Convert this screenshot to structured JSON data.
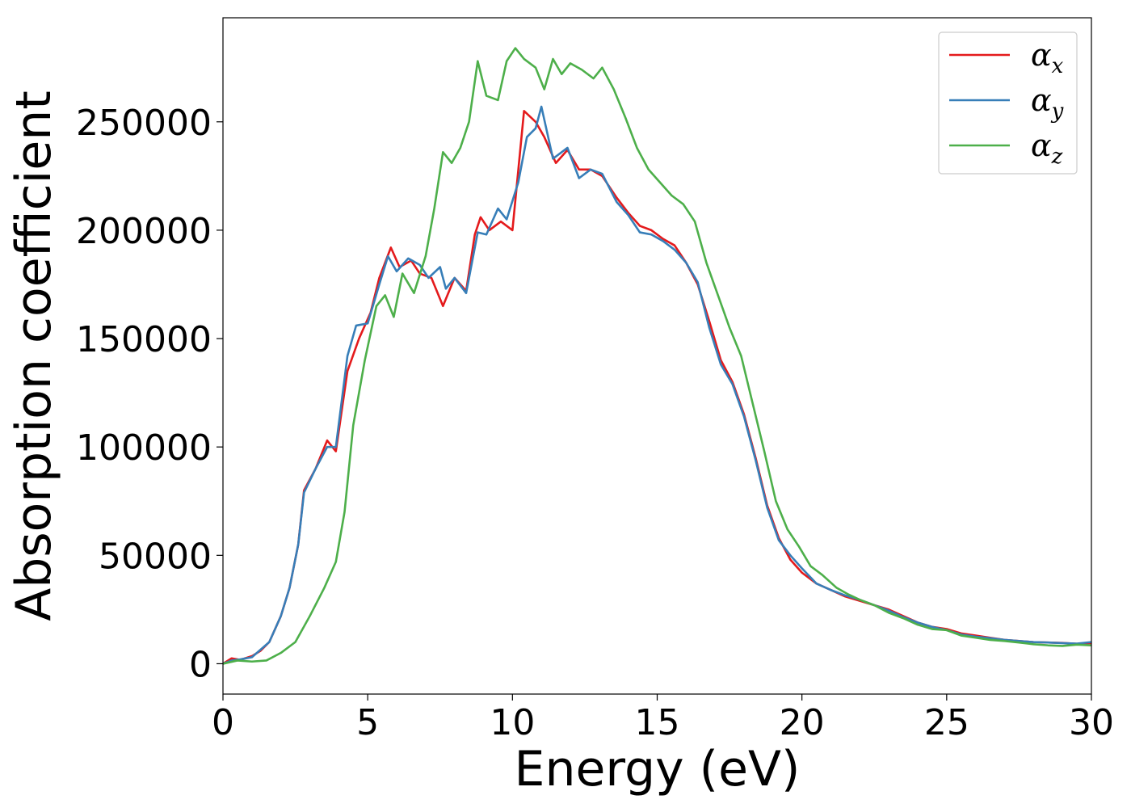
{
  "chart_data": {
    "type": "line",
    "title": "",
    "xlabel": "Energy (eV)",
    "ylabel": "Absorption coefficient",
    "xlim": [
      0,
      30
    ],
    "ylim": [
      -14000,
      298000
    ],
    "xticks": [
      0,
      5,
      10,
      15,
      20,
      25,
      30
    ],
    "yticks": [
      0,
      50000,
      100000,
      150000,
      200000,
      250000
    ],
    "grid": false,
    "legend_position": "top-right",
    "series": [
      {
        "name": "αx",
        "symbol": "α",
        "subscript": "x",
        "color": "#e41a1c",
        "points": [
          [
            0,
            0
          ],
          [
            0.3,
            2500
          ],
          [
            0.6,
            1800
          ],
          [
            1,
            3500
          ],
          [
            1.3,
            6000
          ],
          [
            1.6,
            10000
          ],
          [
            2,
            22000
          ],
          [
            2.3,
            35000
          ],
          [
            2.6,
            55000
          ],
          [
            2.8,
            80000
          ],
          [
            3.2,
            90000
          ],
          [
            3.6,
            103000
          ],
          [
            3.9,
            98000
          ],
          [
            4.3,
            135000
          ],
          [
            4.7,
            150000
          ],
          [
            5.1,
            162000
          ],
          [
            5.4,
            178000
          ],
          [
            5.8,
            192000
          ],
          [
            6.1,
            183000
          ],
          [
            6.5,
            186000
          ],
          [
            6.8,
            180000
          ],
          [
            7.2,
            178000
          ],
          [
            7.6,
            165000
          ],
          [
            8.0,
            178000
          ],
          [
            8.4,
            172000
          ],
          [
            8.7,
            198000
          ],
          [
            8.9,
            206000
          ],
          [
            9.2,
            200000
          ],
          [
            9.6,
            204000
          ],
          [
            10.0,
            200000
          ],
          [
            10.4,
            255000
          ],
          [
            10.8,
            250000
          ],
          [
            11.1,
            243000
          ],
          [
            11.5,
            231000
          ],
          [
            11.9,
            237000
          ],
          [
            12.3,
            228000
          ],
          [
            12.7,
            228000
          ],
          [
            13.1,
            225000
          ],
          [
            13.6,
            215000
          ],
          [
            14.0,
            208000
          ],
          [
            14.4,
            202000
          ],
          [
            14.8,
            200000
          ],
          [
            15.2,
            196000
          ],
          [
            15.6,
            193000
          ],
          [
            16.0,
            185000
          ],
          [
            16.4,
            175000
          ],
          [
            16.8,
            158000
          ],
          [
            17.2,
            140000
          ],
          [
            17.6,
            130000
          ],
          [
            18.0,
            115000
          ],
          [
            18.4,
            95000
          ],
          [
            18.8,
            73000
          ],
          [
            19.2,
            58000
          ],
          [
            19.6,
            48000
          ],
          [
            20.0,
            42000
          ],
          [
            20.5,
            37000
          ],
          [
            21.0,
            34000
          ],
          [
            21.5,
            31000
          ],
          [
            22.0,
            29000
          ],
          [
            22.5,
            27000
          ],
          [
            23.0,
            25000
          ],
          [
            23.5,
            22000
          ],
          [
            24.0,
            19000
          ],
          [
            24.5,
            17000
          ],
          [
            25.0,
            16000
          ],
          [
            25.5,
            14000
          ],
          [
            26.0,
            13000
          ],
          [
            26.5,
            12000
          ],
          [
            27.0,
            11000
          ],
          [
            27.5,
            10500
          ],
          [
            28.0,
            10000
          ],
          [
            28.5,
            9800
          ],
          [
            29.0,
            9600
          ],
          [
            29.5,
            9200
          ],
          [
            30.0,
            9500
          ]
        ]
      },
      {
        "name": "αy",
        "symbol": "α",
        "subscript": "y",
        "color": "#377eb8",
        "points": [
          [
            0,
            0
          ],
          [
            0.3,
            1500
          ],
          [
            0.6,
            2000
          ],
          [
            1,
            3000
          ],
          [
            1.3,
            6500
          ],
          [
            1.6,
            10000
          ],
          [
            2,
            22000
          ],
          [
            2.3,
            35000
          ],
          [
            2.6,
            55000
          ],
          [
            2.8,
            79000
          ],
          [
            3.2,
            90000
          ],
          [
            3.6,
            100000
          ],
          [
            3.9,
            100000
          ],
          [
            4.3,
            142000
          ],
          [
            4.6,
            156000
          ],
          [
            5.0,
            157000
          ],
          [
            5.4,
            175000
          ],
          [
            5.7,
            188000
          ],
          [
            6.0,
            181000
          ],
          [
            6.4,
            187000
          ],
          [
            6.8,
            184000
          ],
          [
            7.1,
            178000
          ],
          [
            7.5,
            183000
          ],
          [
            7.7,
            173000
          ],
          [
            8.0,
            178000
          ],
          [
            8.4,
            171000
          ],
          [
            8.8,
            199000
          ],
          [
            9.1,
            198000
          ],
          [
            9.5,
            210000
          ],
          [
            9.8,
            205000
          ],
          [
            10.2,
            222000
          ],
          [
            10.5,
            243000
          ],
          [
            10.8,
            247000
          ],
          [
            11.0,
            257000
          ],
          [
            11.4,
            233000
          ],
          [
            11.9,
            238000
          ],
          [
            12.3,
            224000
          ],
          [
            12.7,
            228000
          ],
          [
            13.1,
            226000
          ],
          [
            13.6,
            213000
          ],
          [
            14.0,
            207000
          ],
          [
            14.4,
            199000
          ],
          [
            14.8,
            198000
          ],
          [
            15.2,
            195000
          ],
          [
            15.6,
            191000
          ],
          [
            16.0,
            185000
          ],
          [
            16.4,
            176000
          ],
          [
            16.8,
            155000
          ],
          [
            17.2,
            138000
          ],
          [
            17.6,
            129000
          ],
          [
            18.0,
            114000
          ],
          [
            18.4,
            94000
          ],
          [
            18.8,
            72000
          ],
          [
            19.2,
            57000
          ],
          [
            19.6,
            50000
          ],
          [
            20.0,
            44000
          ],
          [
            20.5,
            37000
          ],
          [
            21.0,
            34000
          ],
          [
            21.5,
            31500
          ],
          [
            22.0,
            29500
          ],
          [
            22.5,
            27000
          ],
          [
            23.0,
            24500
          ],
          [
            23.5,
            21500
          ],
          [
            24.0,
            19000
          ],
          [
            24.5,
            17000
          ],
          [
            25.0,
            15500
          ],
          [
            25.5,
            13500
          ],
          [
            26.0,
            12500
          ],
          [
            26.5,
            11800
          ],
          [
            27.0,
            11000
          ],
          [
            27.5,
            10500
          ],
          [
            28.0,
            10000
          ],
          [
            28.5,
            9800
          ],
          [
            29.0,
            9500
          ],
          [
            29.5,
            9300
          ],
          [
            30.0,
            10000
          ]
        ]
      },
      {
        "name": "αz",
        "symbol": "α",
        "subscript": "z",
        "color": "#4daf4a",
        "points": [
          [
            0,
            0
          ],
          [
            0.5,
            1500
          ],
          [
            1,
            1000
          ],
          [
            1.5,
            1500
          ],
          [
            2,
            5000
          ],
          [
            2.5,
            10000
          ],
          [
            3,
            22000
          ],
          [
            3.5,
            35000
          ],
          [
            3.9,
            47000
          ],
          [
            4.2,
            70000
          ],
          [
            4.5,
            110000
          ],
          [
            4.9,
            140000
          ],
          [
            5.3,
            165000
          ],
          [
            5.6,
            170000
          ],
          [
            5.9,
            160000
          ],
          [
            6.2,
            180000
          ],
          [
            6.6,
            171000
          ],
          [
            7.0,
            188000
          ],
          [
            7.3,
            210000
          ],
          [
            7.6,
            236000
          ],
          [
            7.9,
            231000
          ],
          [
            8.2,
            238000
          ],
          [
            8.5,
            250000
          ],
          [
            8.8,
            278000
          ],
          [
            9.1,
            262000
          ],
          [
            9.5,
            260000
          ],
          [
            9.8,
            278000
          ],
          [
            10.1,
            284000
          ],
          [
            10.4,
            279000
          ],
          [
            10.8,
            275000
          ],
          [
            11.1,
            265000
          ],
          [
            11.4,
            279000
          ],
          [
            11.7,
            272000
          ],
          [
            12.0,
            277000
          ],
          [
            12.4,
            274000
          ],
          [
            12.8,
            270000
          ],
          [
            13.1,
            275000
          ],
          [
            13.5,
            265000
          ],
          [
            13.9,
            252000
          ],
          [
            14.3,
            238000
          ],
          [
            14.7,
            228000
          ],
          [
            15.1,
            222000
          ],
          [
            15.5,
            216000
          ],
          [
            15.9,
            212000
          ],
          [
            16.3,
            204000
          ],
          [
            16.7,
            185000
          ],
          [
            17.1,
            170000
          ],
          [
            17.5,
            155000
          ],
          [
            17.9,
            142000
          ],
          [
            18.3,
            120000
          ],
          [
            18.7,
            98000
          ],
          [
            19.1,
            75000
          ],
          [
            19.5,
            62000
          ],
          [
            19.9,
            54000
          ],
          [
            20.3,
            45000
          ],
          [
            20.7,
            41000
          ],
          [
            21.2,
            35000
          ],
          [
            21.6,
            32000
          ],
          [
            22.0,
            29500
          ],
          [
            22.5,
            27000
          ],
          [
            23.0,
            23500
          ],
          [
            23.5,
            21000
          ],
          [
            24.0,
            18000
          ],
          [
            24.5,
            16000
          ],
          [
            25.0,
            15500
          ],
          [
            25.5,
            13000
          ],
          [
            26.0,
            12000
          ],
          [
            26.5,
            11000
          ],
          [
            27.0,
            10500
          ],
          [
            27.5,
            9800
          ],
          [
            28.0,
            9000
          ],
          [
            28.5,
            8500
          ],
          [
            29.0,
            8200
          ],
          [
            29.5,
            8800
          ],
          [
            30.0,
            8500
          ]
        ]
      }
    ]
  }
}
